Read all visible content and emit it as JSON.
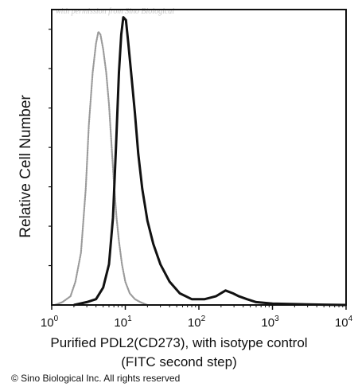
{
  "watermark": "with permission from Sino Biological",
  "copyright": "© Sino Biological Inc. All rights reserved",
  "chart_data": {
    "type": "area",
    "xscale": "log",
    "xlim": [
      1,
      10000
    ],
    "ylim": [
      0,
      100
    ],
    "ylabel": "Relative Cell Number",
    "xlabel_line1": "Purified PDL2(CD273), with isotype control",
    "xlabel_line2": "(FITC second step)",
    "xticks": [
      {
        "base": "10",
        "exp": "0",
        "value": 1
      },
      {
        "base": "10",
        "exp": "1",
        "value": 10
      },
      {
        "base": "10",
        "exp": "2",
        "value": 100
      },
      {
        "base": "10",
        "exp": "3",
        "value": 1000
      },
      {
        "base": "10",
        "exp": "4",
        "value": 10000
      }
    ],
    "series": [
      {
        "style": "dotted",
        "color": "#9a9a9a",
        "x": [
          1.1,
          1.4,
          1.8,
          2.1,
          2.5,
          2.9,
          3.2,
          3.6,
          4.0,
          4.3,
          4.6,
          5.0,
          5.5,
          6.0,
          6.5,
          7.0,
          7.6,
          8.2,
          9.0,
          10.0,
          11.5,
          13.5,
          16.0,
          20.0
        ],
        "y": [
          0,
          1,
          3,
          8,
          18,
          40,
          62,
          80,
          90,
          94,
          93,
          88,
          80,
          69,
          55,
          42,
          30,
          22,
          14,
          8,
          4,
          2,
          1,
          0
        ]
      },
      {
        "style": "solid",
        "color": "#111111",
        "x": [
          2.0,
          3.0,
          4.0,
          5.0,
          6.0,
          6.8,
          7.5,
          8.2,
          8.8,
          9.4,
          10.2,
          11.0,
          12.0,
          13.5,
          15.0,
          17.0,
          20.0,
          24.0,
          30.0,
          40.0,
          55.0,
          80.0,
          120.0,
          170.0,
          230.0,
          290.0,
          350.0,
          450.0,
          600.0,
          1000.0,
          2000.0,
          5000.0,
          10000.0
        ],
        "y": [
          0,
          1,
          2,
          6,
          14,
          30,
          55,
          80,
          93,
          99,
          98,
          90,
          80,
          66,
          52,
          40,
          29,
          21,
          14,
          8,
          4,
          2,
          2,
          3,
          5,
          4,
          3,
          2,
          1,
          0.5,
          0.3,
          0.1,
          0
        ]
      }
    ]
  }
}
